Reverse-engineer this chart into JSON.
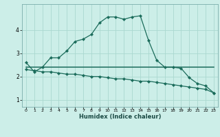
{
  "xlabel": "Humidex (Indice chaleur)",
  "bg_color": "#cceee8",
  "grid_color": "#aad8d0",
  "line_color": "#1a6b5a",
  "xlim": [
    -0.5,
    23.5
  ],
  "ylim": [
    0.7,
    5.1
  ],
  "yticks": [
    1,
    2,
    3,
    4
  ],
  "xticks": [
    0,
    1,
    2,
    3,
    4,
    5,
    6,
    7,
    8,
    9,
    10,
    11,
    12,
    13,
    14,
    15,
    16,
    17,
    18,
    19,
    20,
    21,
    22,
    23
  ],
  "line1_x": [
    0,
    1,
    2,
    3,
    4,
    5,
    6,
    7,
    8,
    9,
    10,
    11,
    12,
    13,
    14,
    15,
    16,
    17,
    18,
    19,
    20,
    21,
    22,
    23
  ],
  "line1_y": [
    2.6,
    2.2,
    2.4,
    2.8,
    2.8,
    3.1,
    3.5,
    3.6,
    3.8,
    4.3,
    4.55,
    4.55,
    4.45,
    4.55,
    4.6,
    3.55,
    2.7,
    2.4,
    2.4,
    2.35,
    1.95,
    1.7,
    1.6,
    1.3
  ],
  "line2_x": [
    0,
    4,
    19,
    23
  ],
  "line2_y": [
    2.4,
    2.4,
    2.4,
    2.4
  ],
  "line3_x": [
    0,
    1,
    2,
    3,
    4,
    5,
    6,
    7,
    8,
    9,
    10,
    11,
    12,
    13,
    14,
    15,
    16,
    17,
    18,
    19,
    20,
    21,
    22,
    23
  ],
  "line3_y": [
    2.3,
    2.25,
    2.2,
    2.2,
    2.15,
    2.1,
    2.1,
    2.05,
    2.0,
    2.0,
    1.95,
    1.9,
    1.9,
    1.85,
    1.8,
    1.8,
    1.75,
    1.7,
    1.65,
    1.6,
    1.55,
    1.5,
    1.45,
    1.3
  ]
}
